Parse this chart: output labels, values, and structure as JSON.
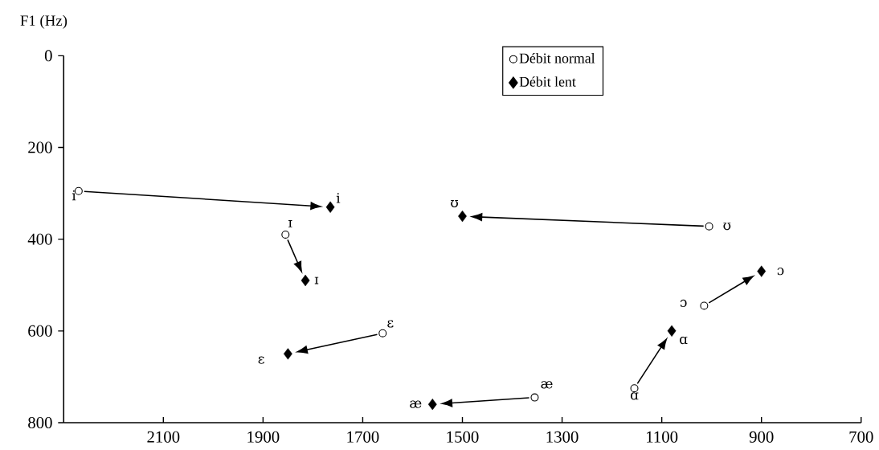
{
  "chart_data": {
    "type": "scatter",
    "ylabel": "F1 (Hz)",
    "xlim": [
      2300,
      700
    ],
    "xticks": [
      2100,
      1900,
      1700,
      1500,
      1300,
      1100,
      900,
      700
    ],
    "ylim": [
      800,
      0
    ],
    "yticks": [
      0,
      200,
      400,
      600,
      800
    ],
    "grid": false,
    "legend": "top right",
    "series": [
      {
        "name": "Débit normal",
        "color": "#000000",
        "marker": "circle",
        "x": [
          2270,
          1855,
          1660,
          1355,
          1005,
          1015,
          1155
        ],
        "values": [
          295,
          390,
          605,
          745,
          372,
          545,
          725
        ]
      },
      {
        "name": "Débit lent",
        "color": "#000000",
        "marker": "diamond",
        "x": [
          1765,
          1815,
          1850,
          1560,
          1500,
          900,
          1080
        ],
        "values": [
          330,
          490,
          650,
          760,
          350,
          470,
          600
        ]
      }
    ],
    "annotations": [
      {
        "text": "i",
        "x": 2270,
        "y": 295
      },
      {
        "text": "i",
        "x": 1765,
        "y": 330
      },
      {
        "text": "ɪ",
        "x": 1855,
        "y": 390
      },
      {
        "text": "ɪ",
        "x": 1815,
        "y": 490
      },
      {
        "text": "ɛ",
        "x": 1660,
        "y": 605
      },
      {
        "text": "ɛ",
        "x": 1850,
        "y": 650
      },
      {
        "text": "æ",
        "x": 1355,
        "y": 745
      },
      {
        "text": "æ",
        "x": 1560,
        "y": 760
      },
      {
        "text": "ʊ",
        "x": 1005,
        "y": 372
      },
      {
        "text": "ʊ",
        "x": 1500,
        "y": 350
      },
      {
        "text": "ɔ",
        "x": 1015,
        "y": 545
      },
      {
        "text": "ɔ",
        "x": 900,
        "y": 470
      },
      {
        "text": "ɑ",
        "x": 1155,
        "y": 725
      },
      {
        "text": "ɑ",
        "x": 1080,
        "y": 600
      }
    ]
  }
}
